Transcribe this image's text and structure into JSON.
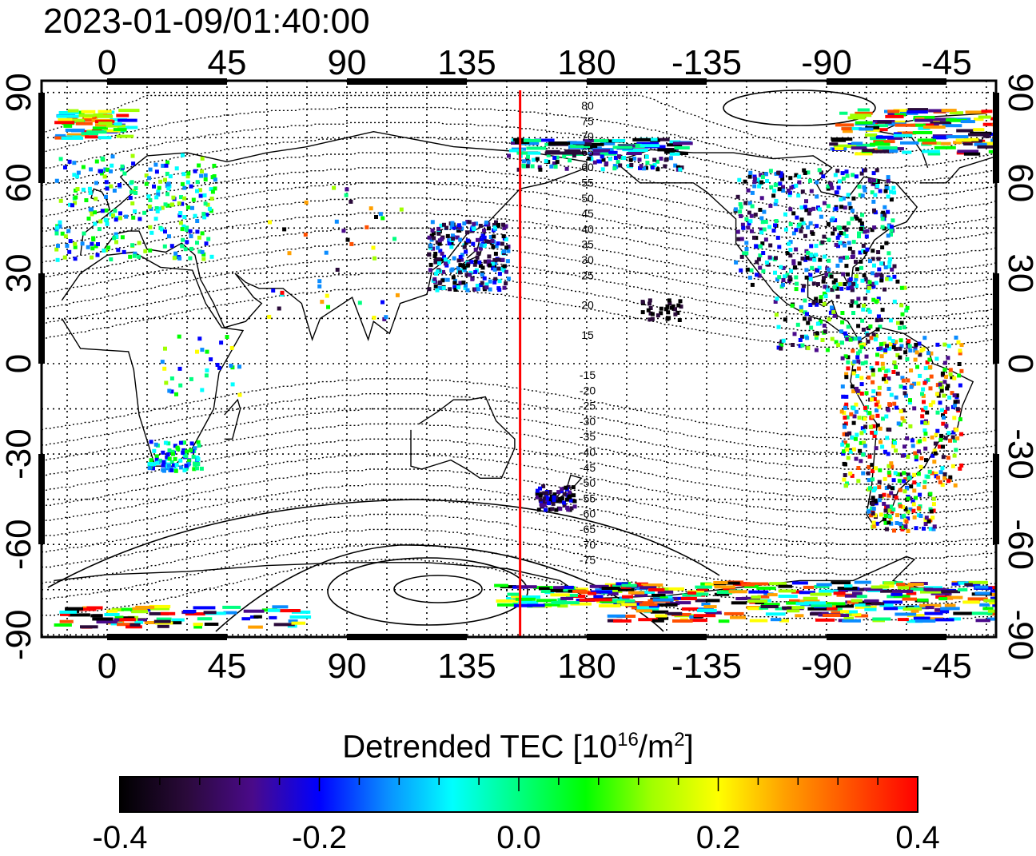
{
  "timestamp": "2023-01-09/01:40:00",
  "map": {
    "lon_labels": [
      "0",
      "45",
      "90",
      "135",
      "180",
      "-135",
      "-90",
      "-45"
    ],
    "lat_labels": [
      "90",
      "60",
      "30",
      "0",
      "-30",
      "-60",
      "-90"
    ],
    "terminator_longitude": 155,
    "terminator_color": "#ff0000",
    "contour_labels_north": [
      "80",
      "75",
      "70",
      "65",
      "60",
      "55",
      "50",
      "45",
      "40",
      "35",
      "30",
      "25",
      "20",
      "15"
    ],
    "contour_labels_south": [
      "-15",
      "-20",
      "-25",
      "-30",
      "-35",
      "-40",
      "-45",
      "-50",
      "-55",
      "-60",
      "-65",
      "-70",
      "-75"
    ]
  },
  "colorbar": {
    "title_main": "Detrended TEC  [10",
    "title_exp1": "16",
    "title_mid": "/m",
    "title_exp2": "2",
    "title_end": "]",
    "ticks": [
      "-0.4",
      "-0.2",
      "0.0",
      "0.2",
      "0.4"
    ],
    "range": [
      -0.4,
      0.4
    ],
    "colors": [
      "#000000",
      "#2a0a3a",
      "#4a0a8a",
      "#0000ff",
      "#0a8cff",
      "#00ffff",
      "#00ff80",
      "#00ff00",
      "#a0ff00",
      "#ffff00",
      "#ffa000",
      "#ff5000",
      "#ff0000"
    ]
  }
}
